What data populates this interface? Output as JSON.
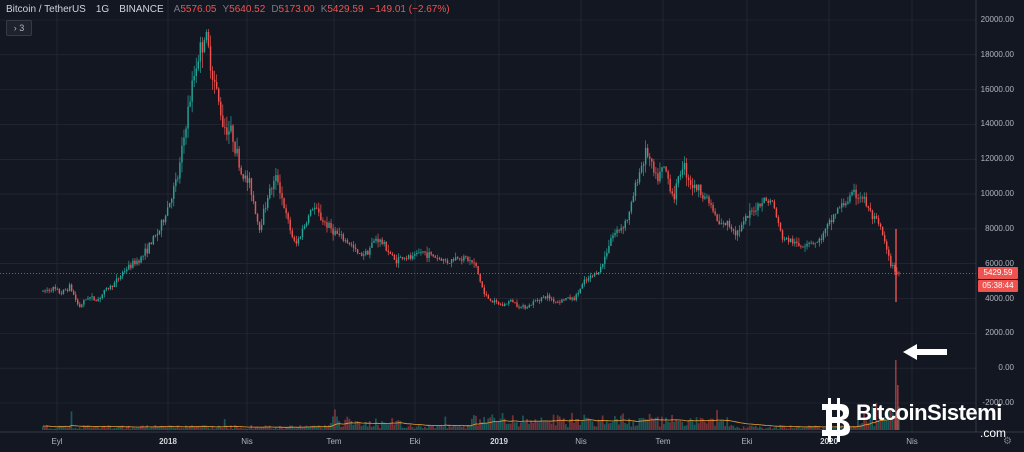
{
  "header": {
    "symbol": "Bitcoin / TetherUS",
    "interval": "1G",
    "exchange": "BINANCE",
    "open_label": "A",
    "open": "5576.05",
    "high_label": "Y",
    "high": "5640.52",
    "low_label": "D",
    "low": "5173.00",
    "close_label": "K",
    "close": "5429.59",
    "change": "−149.01 (−2.67%)"
  },
  "legend_toggle": "› 3",
  "price_tags": {
    "last_price": "5429.59",
    "countdown": "05:38:44"
  },
  "watermark": {
    "name": "BitcoinSistemi",
    "tld": ".com",
    "logo_icon": "bitcoin-logo-icon"
  },
  "icons": {
    "arrow": "arrow-left-icon",
    "settings": "gear-icon"
  },
  "colors": {
    "up": "#26a69a",
    "down": "#ef5350",
    "last_price_line": "#ef5350",
    "background": "#131722",
    "grid": "#2a2e39",
    "volume_ma": "#f0a030"
  },
  "chart_data": {
    "type": "line",
    "title": "",
    "xlabel": "",
    "ylabel": "",
    "ylim": [
      -2000,
      20000
    ],
    "x_ticks": [
      "Eyl",
      "2018",
      "Nis",
      "Tem",
      "Eki",
      "2019",
      "Nis",
      "Tem",
      "Eki",
      "2020",
      "Nis"
    ],
    "y_ticks": [
      "20000.00",
      "18000.00",
      "16000.00",
      "14000.00",
      "12000.00",
      "10000.00",
      "8000.00",
      "6000.00",
      "4000.00",
      "2000.00",
      "0.00",
      "-2000.00"
    ],
    "last_price": 5429.59,
    "grid": true,
    "series": [
      {
        "values": [
          4400,
          4600,
          4300,
          4700,
          3500,
          4100,
          3900,
          4500,
          4900,
          5600,
          6000,
          6400,
          7200,
          8000,
          9500,
          11000,
          14500,
          17500,
          19200,
          16500,
          14000,
          13500,
          11200,
          10500,
          8000,
          10000,
          11000,
          8700,
          7000,
          8200,
          9300,
          8500,
          8000,
          7500,
          7200,
          6500,
          6700,
          7500,
          7000,
          6200,
          6400,
          6300,
          6700,
          6500,
          6300,
          6100,
          6400,
          6300,
          5900,
          4200,
          3800,
          3600,
          3900,
          3500,
          3600,
          4000,
          4100,
          3800,
          4000,
          4000,
          4900,
          5300,
          5800,
          7500,
          8000,
          8700,
          11000,
          12500,
          10800,
          11500,
          9800,
          11800,
          10500,
          10200,
          9500,
          8200,
          8300,
          7800,
          8500,
          9200,
          9700,
          9500,
          7500,
          7300,
          7000,
          7300,
          7200,
          8000,
          9000,
          9500,
          10000,
          9800,
          8700,
          8000,
          6000,
          5429.59
        ]
      }
    ],
    "volume_note": "volume histogram with moving average along bottom"
  }
}
